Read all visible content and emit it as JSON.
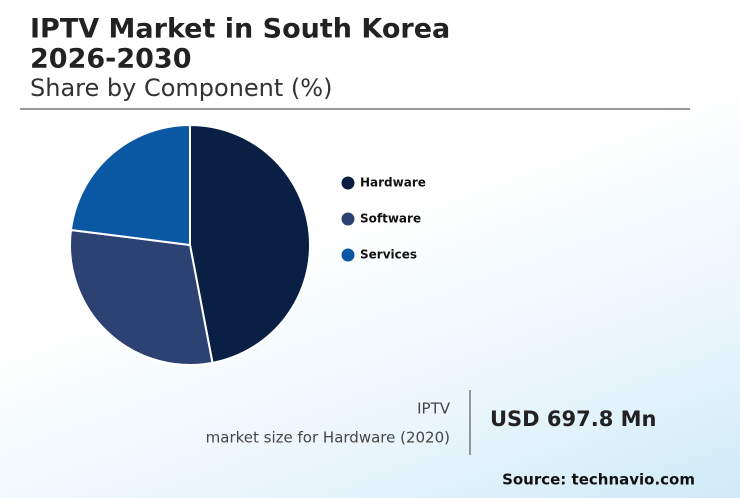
{
  "chart_data": {
    "type": "pie",
    "title": [
      "IPTV Market in South Korea",
      "2026-2030"
    ],
    "subtitle": "Share by Component (%)",
    "categories": [
      "Hardware",
      "Software",
      "Services"
    ],
    "values": [
      47,
      30,
      23
    ],
    "colors": [
      "#0a1f44",
      "#2c4272",
      "#0a57a4"
    ]
  },
  "highlight": {
    "label": [
      "IPTV",
      "market size for Hardware (2020)"
    ],
    "value": "USD 697.8 Mn"
  },
  "source": "Source: technavio.com"
}
